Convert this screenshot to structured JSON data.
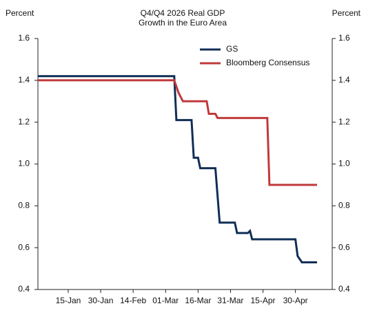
{
  "chart_data": {
    "type": "line",
    "title": [
      "Q4/Q4 2026 Real GDP",
      "Growth in the Euro Area"
    ],
    "y_label": "Percent",
    "y2_label": "Percent",
    "xlim": [
      "01-Jan",
      "17-May"
    ],
    "xticks": [
      "15-Jan",
      "30-Jan",
      "14-Feb",
      "01-Mar",
      "16-Mar",
      "31-Mar",
      "15-Apr",
      "30-Apr"
    ],
    "ylim": [
      0.4,
      1.6
    ],
    "yticks": [
      0.4,
      0.6,
      0.8,
      {
        "value": 1.0,
        "label": "1.0"
      },
      1.2,
      1.4,
      1.6
    ],
    "y2lim": [
      0.4,
      1.6
    ],
    "y2ticks": [
      0.4,
      0.6,
      0.8,
      {
        "value": 1.0,
        "label": "1.0"
      },
      1.2,
      1.4,
      1.6
    ],
    "legend": "upper center",
    "series": [
      {
        "name": "GS",
        "color": "#0f2e55",
        "x": [
          "01-Jan",
          "05-Mar",
          "06-Mar",
          "13-Mar",
          "14-Mar",
          "16-Mar",
          "17-Mar",
          "24-Mar",
          "26-Mar",
          "02-Apr",
          "03-Apr",
          "08-Apr",
          "09-Apr",
          "10-Apr",
          "30-Apr",
          "01-May",
          "03-May",
          "10-May"
        ],
        "values": [
          1.42,
          1.42,
          1.21,
          1.21,
          1.03,
          1.03,
          0.98,
          0.98,
          0.72,
          0.72,
          0.67,
          0.67,
          0.68,
          0.64,
          0.64,
          0.56,
          0.53,
          0.53
        ]
      },
      {
        "name": "Bloomberg Consensus",
        "color": "#c0393b",
        "x": [
          "01-Jan",
          "05-Mar",
          "07-Mar",
          "09-Mar",
          "20-Mar",
          "21-Mar",
          "24-Mar",
          "25-Mar",
          "17-Apr",
          "18-Apr",
          "10-May"
        ],
        "values": [
          1.4,
          1.4,
          1.34,
          1.3,
          1.3,
          1.24,
          1.24,
          1.22,
          1.22,
          0.9,
          0.9
        ]
      }
    ]
  }
}
